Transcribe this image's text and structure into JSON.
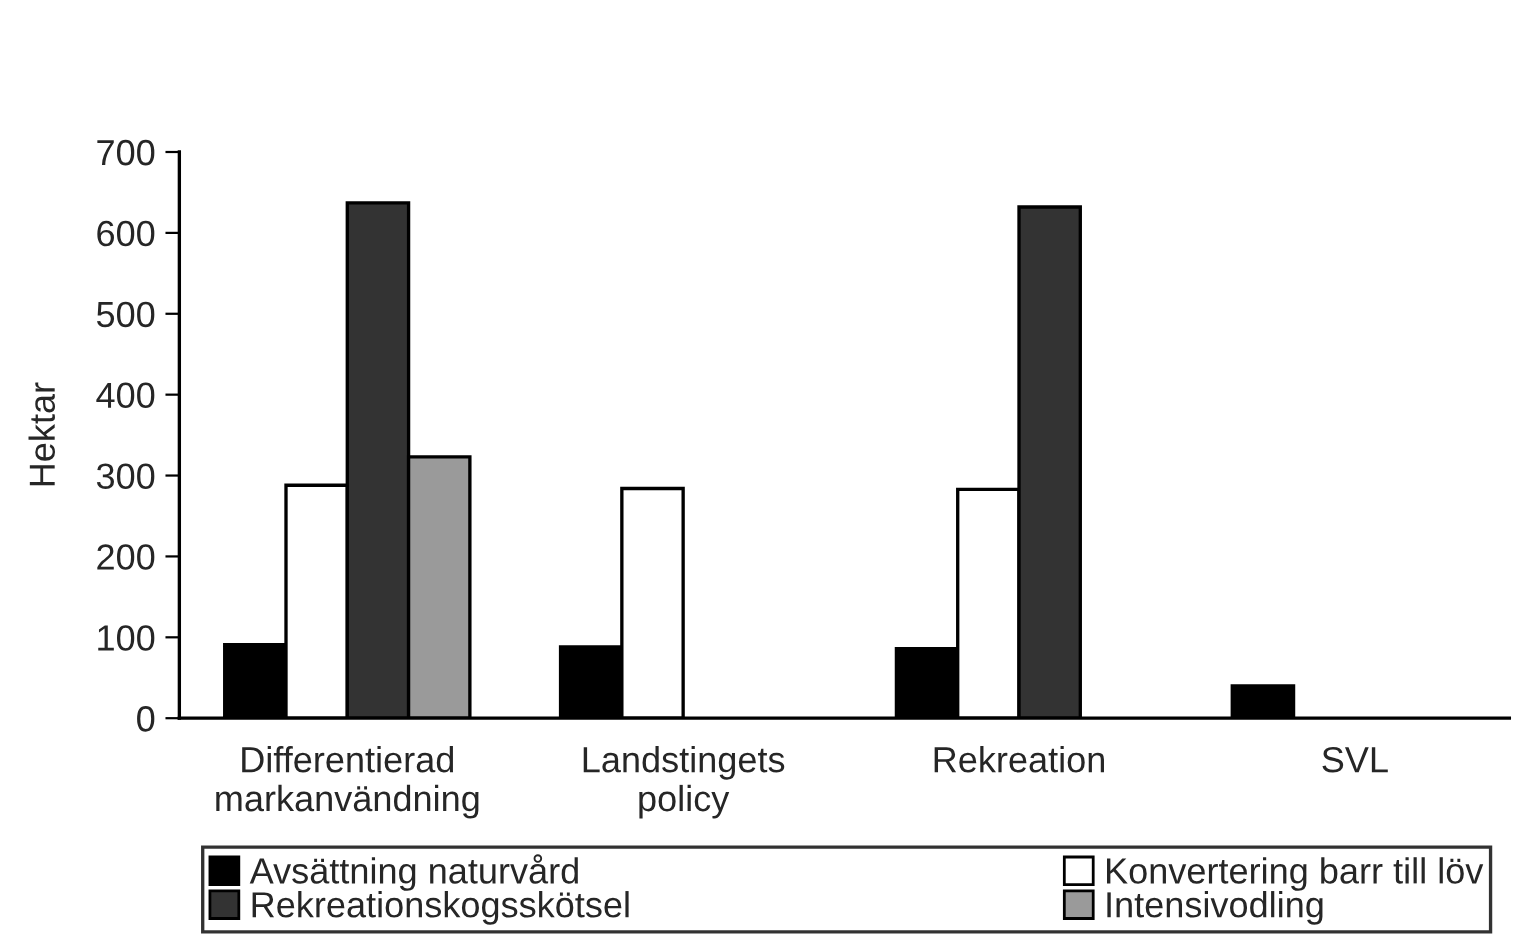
{
  "chart_data": {
    "type": "bar",
    "ylabel": "Hektar",
    "categories": [
      "Differentierad\nmarkanvändning",
      "Landstingets\npolicy",
      "Rekreation",
      "SVL"
    ],
    "series": [
      {
        "name": "Avsättning naturvård",
        "color": "#000000",
        "values": [
          91,
          88,
          86,
          40
        ]
      },
      {
        "name": "Konvertering barr till löv",
        "color": "#ffffff",
        "values": [
          288,
          284,
          283,
          null
        ]
      },
      {
        "name": "Rekreationskogsskötsel",
        "color": "#333333",
        "values": [
          637,
          null,
          632,
          null
        ]
      },
      {
        "name": "Intensivodling",
        "color": "#9a9a9a",
        "values": [
          323,
          null,
          null,
          null
        ]
      }
    ],
    "ylim": [
      0,
      700
    ],
    "yticks": [
      0,
      100,
      200,
      300,
      400,
      500,
      600,
      700
    ],
    "grid": false,
    "legend": "bottom"
  }
}
